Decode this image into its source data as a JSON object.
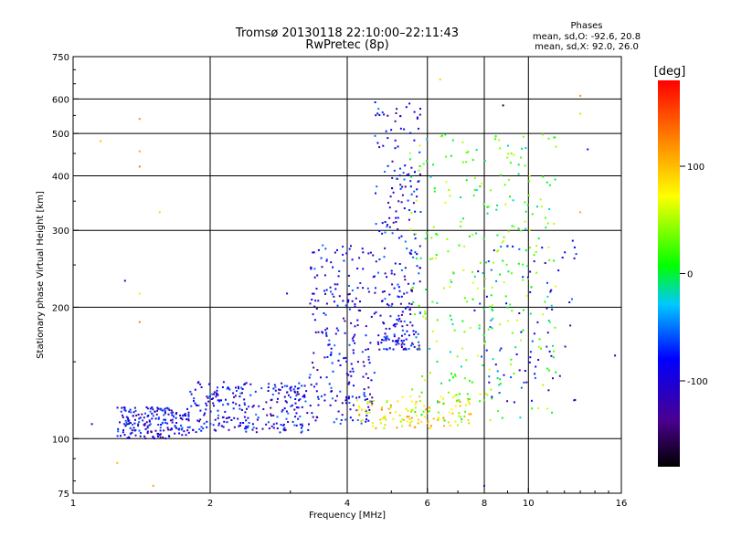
{
  "chart_data": {
    "type": "scatter",
    "title": "Tromsø 20130118 22:10:00–22:11:43",
    "subtitle": "RwPretec (8p)",
    "xlabel": "Frequency [MHz]",
    "ylabel": "Stationary phase Virtual Height [km]",
    "x_scale": "log",
    "y_scale": "log",
    "xlim": [
      1,
      16
    ],
    "ylim": [
      75,
      750
    ],
    "x_ticks": [
      1,
      2,
      4,
      6,
      8,
      10,
      16
    ],
    "y_ticks": [
      75,
      100,
      200,
      300,
      400,
      500,
      600,
      750
    ],
    "x_gridlines": [
      2,
      4,
      6,
      8,
      10
    ],
    "y_gridlines": [
      100,
      200,
      300,
      400,
      500,
      600
    ],
    "grid": true,
    "info_header": "Phases",
    "info_lines": [
      "mean, sd,O: -92.6, 20.8",
      "mean, sd,X:  92.0, 26.0"
    ],
    "colorbar": {
      "label": "[deg]",
      "range": [
        -180,
        180
      ],
      "ticks": [
        -100,
        0,
        100
      ],
      "colormap": "rainbow"
    },
    "clusters": [
      {
        "x": [
          1.25,
          1.8
        ],
        "y": [
          100,
          118
        ],
        "phase": -95,
        "count": 200
      },
      {
        "x": [
          1.8,
          3.3
        ],
        "y": [
          103,
          135
        ],
        "phase": -90,
        "count": 260
      },
      {
        "x": [
          3.3,
          4.6
        ],
        "y": [
          108,
          280
        ],
        "phase": -95,
        "count": 240
      },
      {
        "x": [
          4.6,
          5.8
        ],
        "y": [
          160,
          600
        ],
        "phase": -92,
        "count": 260
      },
      {
        "x": [
          4.2,
          7.5
        ],
        "y": [
          105,
          125
        ],
        "phase": 85,
        "count": 120
      },
      {
        "x": [
          5.5,
          11.5
        ],
        "y": [
          110,
          500
        ],
        "phase": 20,
        "count": 320
      },
      {
        "x": [
          7.5,
          13.0
        ],
        "y": [
          120,
          290
        ],
        "phase": -90,
        "count": 80
      }
    ],
    "isolated_points": [
      {
        "x": 1.15,
        "y": 480,
        "phase": 100
      },
      {
        "x": 1.4,
        "y": 540,
        "phase": 120
      },
      {
        "x": 1.4,
        "y": 455,
        "phase": 110
      },
      {
        "x": 1.4,
        "y": 420,
        "phase": 130
      },
      {
        "x": 1.4,
        "y": 215,
        "phase": 60
      },
      {
        "x": 1.4,
        "y": 185,
        "phase": 130
      },
      {
        "x": 1.5,
        "y": 78,
        "phase": 110
      },
      {
        "x": 1.55,
        "y": 330,
        "phase": 50
      },
      {
        "x": 1.3,
        "y": 230,
        "phase": -100
      },
      {
        "x": 1.1,
        "y": 108,
        "phase": -100
      },
      {
        "x": 1.25,
        "y": 88,
        "phase": 100
      },
      {
        "x": 2.95,
        "y": 215,
        "phase": -110
      },
      {
        "x": 13.0,
        "y": 610,
        "phase": 120
      },
      {
        "x": 13.0,
        "y": 555,
        "phase": 50
      },
      {
        "x": 13.5,
        "y": 460,
        "phase": -100
      },
      {
        "x": 13.0,
        "y": 330,
        "phase": 110
      },
      {
        "x": 15.5,
        "y": 155,
        "phase": -100
      },
      {
        "x": 8.8,
        "y": 580,
        "phase": -160
      },
      {
        "x": 6.4,
        "y": 665,
        "phase": 90
      },
      {
        "x": 8.0,
        "y": 78,
        "phase": -110
      }
    ]
  }
}
